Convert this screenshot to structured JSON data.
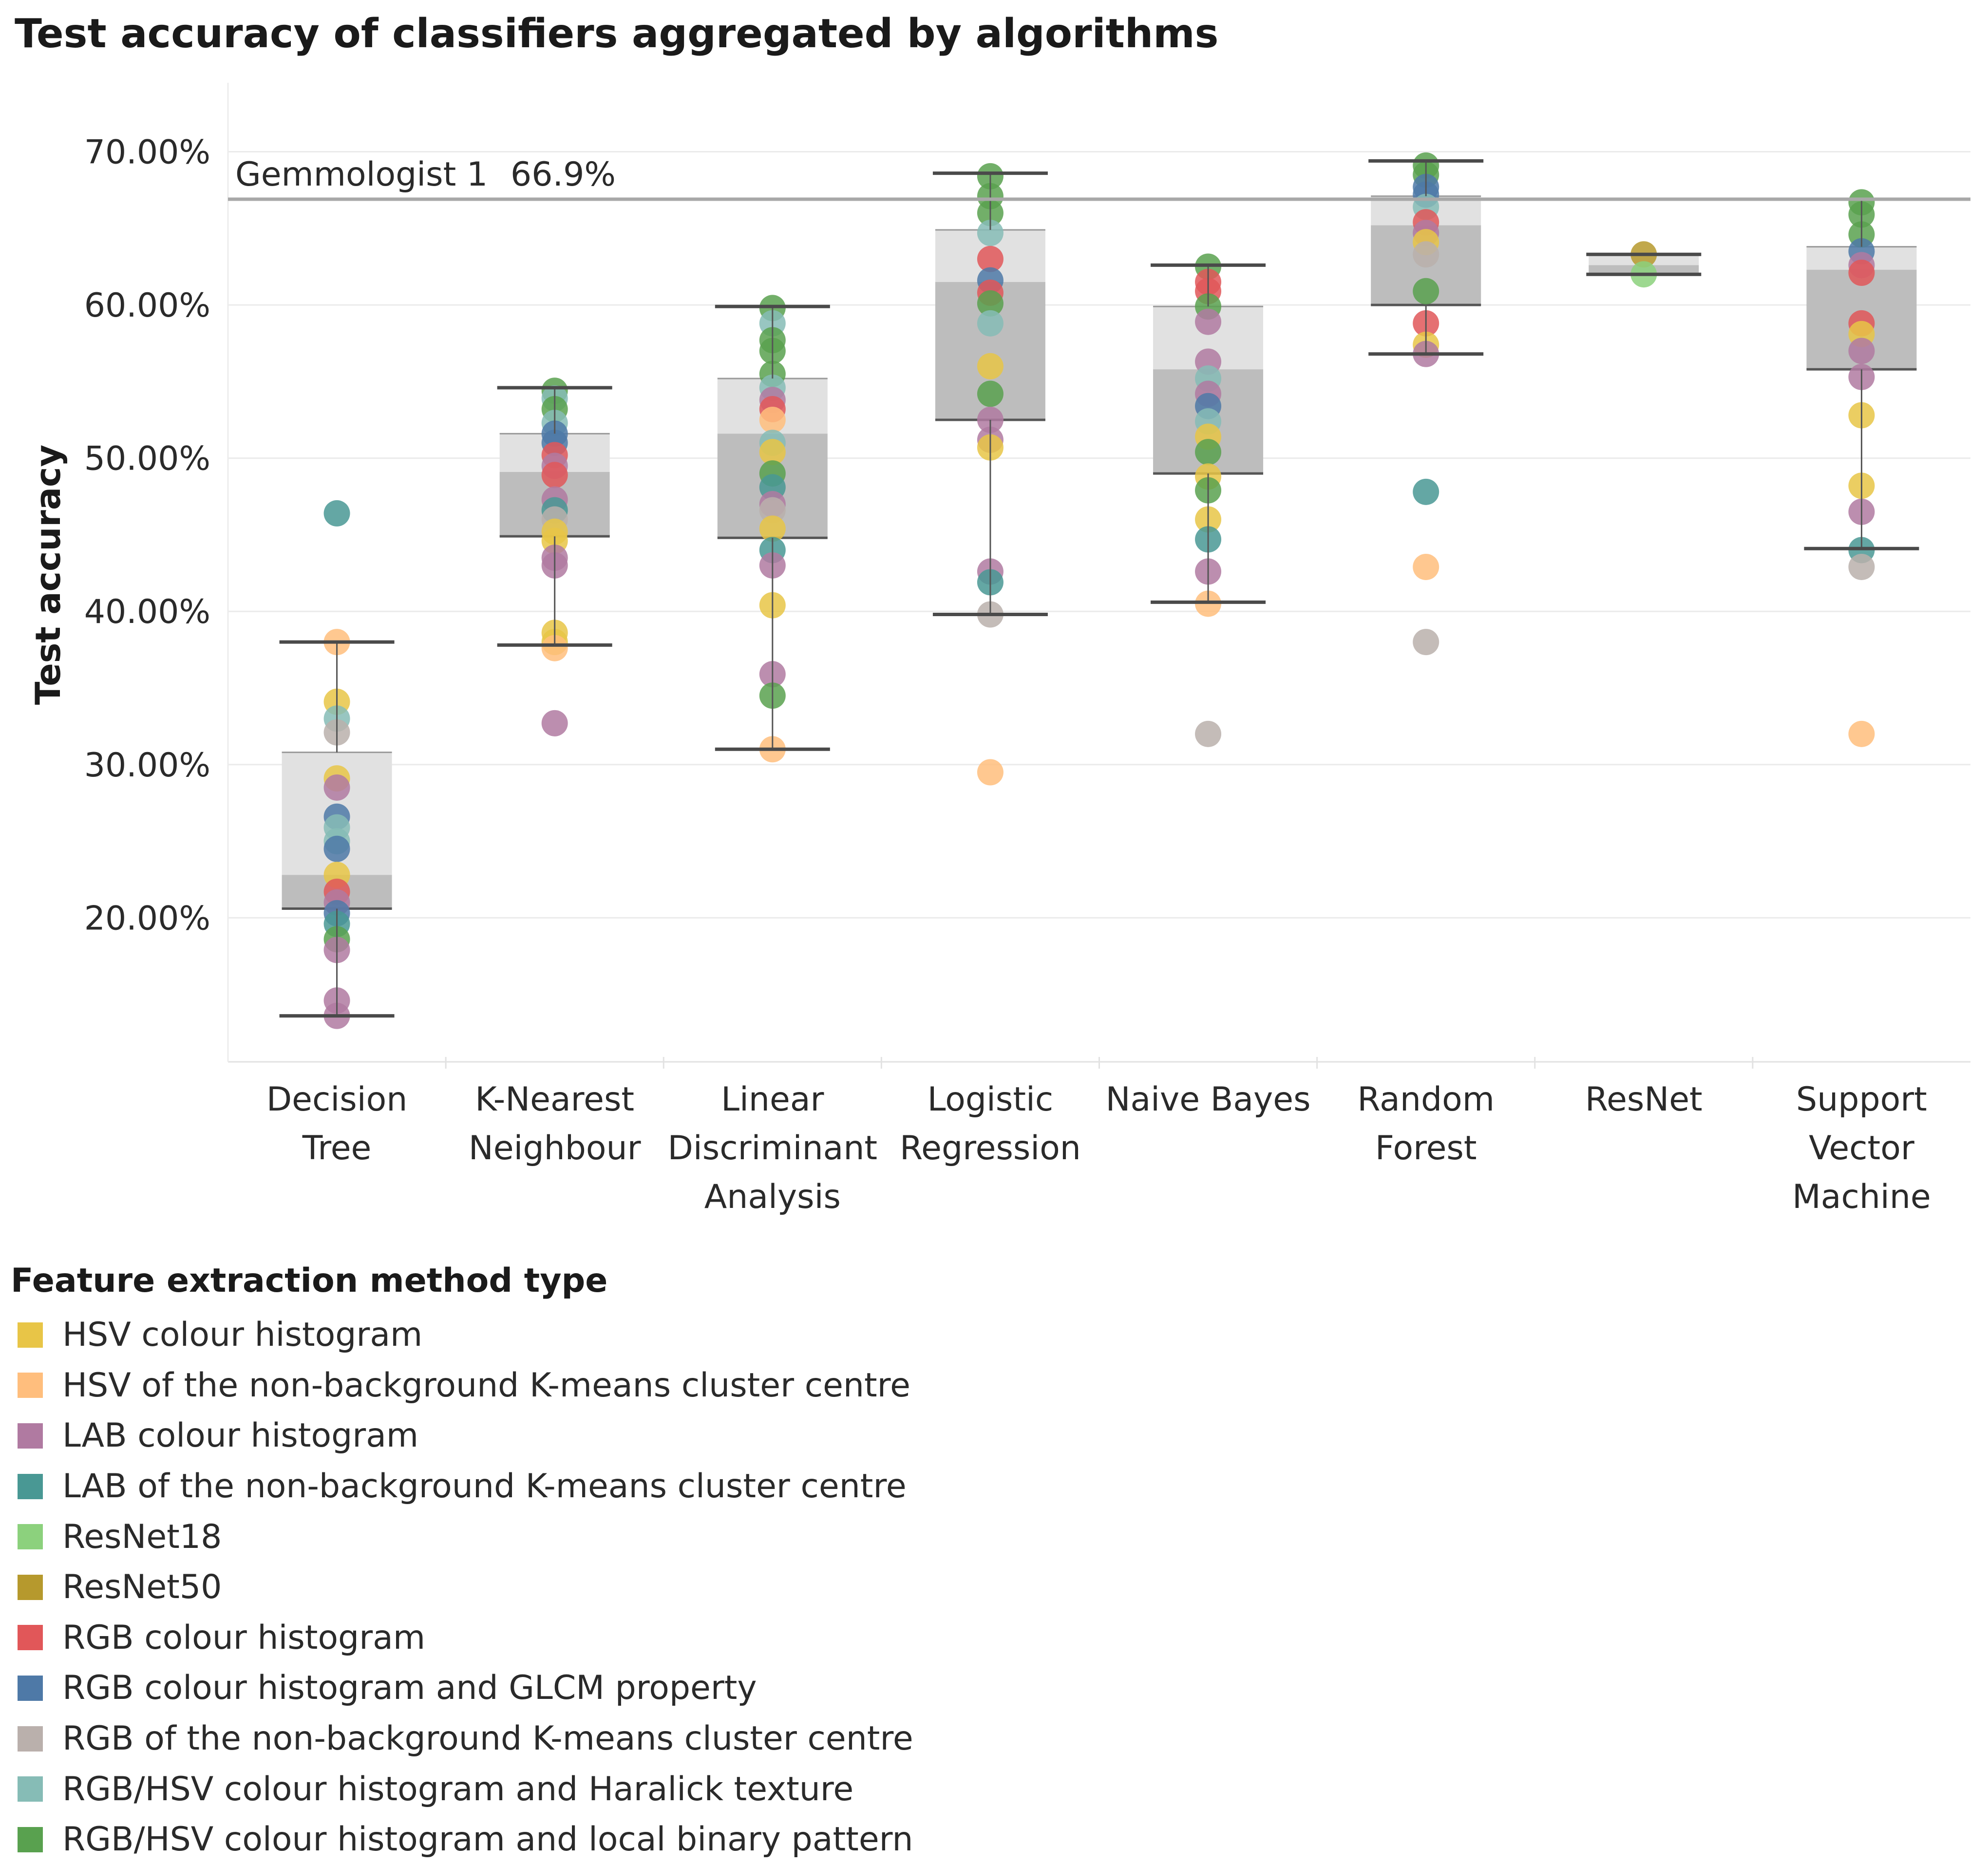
{
  "chart_data": {
    "type": "box-strip",
    "title": "Test accuracy of classifiers aggregated by algorithms",
    "ylabel": "Test accuracy",
    "xlabel": "",
    "ylim": [
      10.6,
      74.5
    ],
    "yticks": [
      20,
      30,
      40,
      50,
      60,
      70
    ],
    "ytick_labels": [
      "20.00%",
      "30.00%",
      "40.00%",
      "50.00%",
      "60.00%",
      "70.00%"
    ],
    "reference_line": {
      "label": "Gemmologist 1",
      "value_label": "66.9%",
      "value": 66.9
    },
    "categories": [
      {
        "lines": [
          "Decision",
          "Tree"
        ],
        "box": {
          "lower_whisker": 13.6,
          "q1": 20.6,
          "median": 22.8,
          "q3": 30.8,
          "upper_whisker": 38.0
        },
        "points": [
          {
            "v": 46.4,
            "t": 3
          },
          {
            "v": 38.0,
            "t": 1
          },
          {
            "v": 34.1,
            "t": 0
          },
          {
            "v": 33.0,
            "t": 9
          },
          {
            "v": 32.1,
            "t": 8
          },
          {
            "v": 29.1,
            "t": 0
          },
          {
            "v": 28.5,
            "t": 2
          },
          {
            "v": 26.6,
            "t": 7
          },
          {
            "v": 25.9,
            "t": 9
          },
          {
            "v": 25.0,
            "t": 9
          },
          {
            "v": 24.5,
            "t": 7
          },
          {
            "v": 22.8,
            "t": 0
          },
          {
            "v": 21.7,
            "t": 6
          },
          {
            "v": 21.0,
            "t": 2
          },
          {
            "v": 20.3,
            "t": 7
          },
          {
            "v": 19.6,
            "t": 3
          },
          {
            "v": 18.6,
            "t": 10
          },
          {
            "v": 17.9,
            "t": 2
          },
          {
            "v": 14.6,
            "t": 2
          },
          {
            "v": 13.6,
            "t": 2
          }
        ]
      },
      {
        "lines": [
          "K-Nearest",
          "Neighbour"
        ],
        "box": {
          "lower_whisker": 37.8,
          "q1": 44.9,
          "median": 49.1,
          "q3": 51.6,
          "upper_whisker": 54.6
        },
        "points": [
          {
            "v": 54.4,
            "t": 10
          },
          {
            "v": 53.9,
            "t": 9
          },
          {
            "v": 53.2,
            "t": 10
          },
          {
            "v": 52.3,
            "t": 9
          },
          {
            "v": 51.6,
            "t": 7
          },
          {
            "v": 51.0,
            "t": 7
          },
          {
            "v": 50.2,
            "t": 6
          },
          {
            "v": 49.5,
            "t": 2
          },
          {
            "v": 48.9,
            "t": 6
          },
          {
            "v": 47.3,
            "t": 2
          },
          {
            "v": 46.6,
            "t": 3
          },
          {
            "v": 46.0,
            "t": 8
          },
          {
            "v": 45.2,
            "t": 0
          },
          {
            "v": 44.6,
            "t": 0
          },
          {
            "v": 43.5,
            "t": 2
          },
          {
            "v": 43.0,
            "t": 2
          },
          {
            "v": 38.6,
            "t": 0
          },
          {
            "v": 38.0,
            "t": 0
          },
          {
            "v": 37.6,
            "t": 1
          },
          {
            "v": 32.7,
            "t": 2
          }
        ]
      },
      {
        "lines": [
          "Linear",
          "Discriminant",
          "Analysis"
        ],
        "box": {
          "lower_whisker": 31.0,
          "q1": 44.8,
          "median": 51.6,
          "q3": 55.2,
          "upper_whisker": 59.9
        },
        "points": [
          {
            "v": 59.8,
            "t": 10
          },
          {
            "v": 58.8,
            "t": 9
          },
          {
            "v": 57.7,
            "t": 10
          },
          {
            "v": 57.0,
            "t": 10
          },
          {
            "v": 55.5,
            "t": 10
          },
          {
            "v": 54.6,
            "t": 9
          },
          {
            "v": 53.8,
            "t": 2
          },
          {
            "v": 53.2,
            "t": 6
          },
          {
            "v": 52.5,
            "t": 1
          },
          {
            "v": 51.0,
            "t": 9
          },
          {
            "v": 50.4,
            "t": 0
          },
          {
            "v": 49.0,
            "t": 10
          },
          {
            "v": 48.1,
            "t": 3
          },
          {
            "v": 47.0,
            "t": 2
          },
          {
            "v": 46.6,
            "t": 8
          },
          {
            "v": 45.4,
            "t": 0
          },
          {
            "v": 44.0,
            "t": 3
          },
          {
            "v": 43.0,
            "t": 2
          },
          {
            "v": 40.4,
            "t": 0
          },
          {
            "v": 35.9,
            "t": 2
          },
          {
            "v": 34.5,
            "t": 10
          },
          {
            "v": 31.0,
            "t": 1
          }
        ]
      },
      {
        "lines": [
          "Logistic",
          "Regression"
        ],
        "box": {
          "lower_whisker": 39.8,
          "q1": 52.5,
          "median": 61.5,
          "q3": 64.9,
          "upper_whisker": 68.6
        },
        "points": [
          {
            "v": 68.4,
            "t": 10
          },
          {
            "v": 67.1,
            "t": 10
          },
          {
            "v": 66.0,
            "t": 10
          },
          {
            "v": 64.7,
            "t": 9
          },
          {
            "v": 63.0,
            "t": 6
          },
          {
            "v": 61.6,
            "t": 7
          },
          {
            "v": 60.8,
            "t": 6
          },
          {
            "v": 60.1,
            "t": 10
          },
          {
            "v": 58.8,
            "t": 9
          },
          {
            "v": 56.0,
            "t": 0
          },
          {
            "v": 54.2,
            "t": 10
          },
          {
            "v": 52.5,
            "t": 2
          },
          {
            "v": 51.2,
            "t": 2
          },
          {
            "v": 50.7,
            "t": 0
          },
          {
            "v": 42.6,
            "t": 2
          },
          {
            "v": 41.9,
            "t": 3
          },
          {
            "v": 39.8,
            "t": 8
          },
          {
            "v": 29.5,
            "t": 1
          }
        ]
      },
      {
        "lines": [
          "Naive Bayes"
        ],
        "box": {
          "lower_whisker": 40.6,
          "q1": 49.0,
          "median": 55.8,
          "q3": 59.9,
          "upper_whisker": 62.6
        },
        "points": [
          {
            "v": 62.5,
            "t": 10
          },
          {
            "v": 61.5,
            "t": 6
          },
          {
            "v": 60.9,
            "t": 6
          },
          {
            "v": 59.9,
            "t": 10
          },
          {
            "v": 58.9,
            "t": 2
          },
          {
            "v": 56.3,
            "t": 2
          },
          {
            "v": 55.2,
            "t": 9
          },
          {
            "v": 54.2,
            "t": 2
          },
          {
            "v": 53.4,
            "t": 7
          },
          {
            "v": 52.4,
            "t": 9
          },
          {
            "v": 51.4,
            "t": 0
          },
          {
            "v": 50.4,
            "t": 10
          },
          {
            "v": 48.8,
            "t": 0
          },
          {
            "v": 47.9,
            "t": 10
          },
          {
            "v": 46.0,
            "t": 0
          },
          {
            "v": 44.7,
            "t": 3
          },
          {
            "v": 42.6,
            "t": 2
          },
          {
            "v": 40.5,
            "t": 1
          },
          {
            "v": 32.0,
            "t": 8
          }
        ]
      },
      {
        "lines": [
          "Random",
          "Forest"
        ],
        "box": {
          "lower_whisker": 56.8,
          "q1": 60.0,
          "median": 65.2,
          "q3": 67.1,
          "upper_whisker": 69.4
        },
        "points": [
          {
            "v": 69.1,
            "t": 10
          },
          {
            "v": 68.5,
            "t": 10
          },
          {
            "v": 67.7,
            "t": 7
          },
          {
            "v": 67.2,
            "t": 7
          },
          {
            "v": 66.4,
            "t": 9
          },
          {
            "v": 65.4,
            "t": 6
          },
          {
            "v": 64.7,
            "t": 2
          },
          {
            "v": 64.1,
            "t": 0
          },
          {
            "v": 63.3,
            "t": 8
          },
          {
            "v": 60.9,
            "t": 10
          },
          {
            "v": 58.8,
            "t": 6
          },
          {
            "v": 57.4,
            "t": 0
          },
          {
            "v": 56.8,
            "t": 2
          },
          {
            "v": 47.8,
            "t": 3
          },
          {
            "v": 42.9,
            "t": 1
          },
          {
            "v": 38.0,
            "t": 8
          }
        ]
      },
      {
        "lines": [
          "ResNet"
        ],
        "box": {
          "lower_whisker": 62.0,
          "q1": 62.0,
          "median": 62.6,
          "q3": 63.3,
          "upper_whisker": 63.3
        },
        "points": [
          {
            "v": 63.3,
            "t": 5
          },
          {
            "v": 62.0,
            "t": 4
          }
        ]
      },
      {
        "lines": [
          "Support",
          "Vector",
          "Machine"
        ],
        "box": {
          "lower_whisker": 44.1,
          "q1": 55.8,
          "median": 62.3,
          "q3": 63.8,
          "upper_whisker": 66.9
        },
        "points": [
          {
            "v": 66.7,
            "t": 10
          },
          {
            "v": 65.9,
            "t": 10
          },
          {
            "v": 64.6,
            "t": 10
          },
          {
            "v": 63.5,
            "t": 7
          },
          {
            "v": 62.6,
            "t": 2
          },
          {
            "v": 62.1,
            "t": 6
          },
          {
            "v": 58.8,
            "t": 6
          },
          {
            "v": 58.1,
            "t": 0
          },
          {
            "v": 57.0,
            "t": 2
          },
          {
            "v": 55.3,
            "t": 2
          },
          {
            "v": 52.8,
            "t": 0
          },
          {
            "v": 48.2,
            "t": 0
          },
          {
            "v": 46.5,
            "t": 2
          },
          {
            "v": 44.0,
            "t": 3
          },
          {
            "v": 42.9,
            "t": 8
          },
          {
            "v": 32.0,
            "t": 1
          }
        ]
      }
    ],
    "legend": {
      "title": "Feature extraction method type",
      "placement": "bottom-left",
      "items": [
        {
          "label": "HSV colour histogram",
          "color": "#e8c547"
        },
        {
          "label": "HSV of the non-background K-means cluster centre",
          "color": "#ffbe7d"
        },
        {
          "label": "LAB colour histogram",
          "color": "#b07aa1"
        },
        {
          "label": "LAB of the non-background K-means cluster centre",
          "color": "#499894"
        },
        {
          "label": "ResNet18",
          "color": "#8cd17d"
        },
        {
          "label": "ResNet50",
          "color": "#b6992d"
        },
        {
          "label": "RGB colour histogram",
          "color": "#e15759"
        },
        {
          "label": "RGB colour histogram and GLCM property",
          "color": "#4e79a7"
        },
        {
          "label": "RGB of the non-background K-means cluster centre",
          "color": "#bab0ac"
        },
        {
          "label": "RGB/HSV colour histogram and Haralick texture",
          "color": "#86bcb6"
        },
        {
          "label": "RGB/HSV colour histogram and local binary pattern",
          "color": "#59a14f"
        }
      ]
    }
  }
}
